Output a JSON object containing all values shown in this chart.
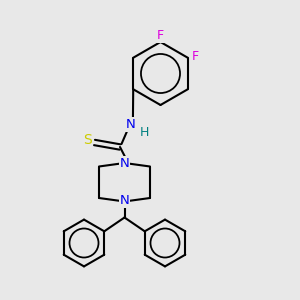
{
  "bg_color": "#e8e8e8",
  "bond_color": "#000000",
  "bond_width": 1.5,
  "fig_width": 3.0,
  "fig_height": 3.0,
  "dpi": 100,
  "atom_colors": {
    "N": "#0000ee",
    "S": "#cccc00",
    "F": "#dd00dd",
    "H": "#008080"
  }
}
